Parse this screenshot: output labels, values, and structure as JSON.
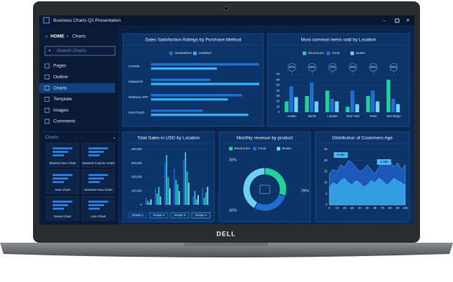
{
  "window": {
    "title": "Business Charts Q1 Presentation"
  },
  "breadcrumb": {
    "home": "HOME",
    "current": "Charts"
  },
  "search": {
    "placeholder": "Search Charts"
  },
  "sidebar": {
    "items": [
      "Pages",
      "Outline",
      "Charts",
      "Template",
      "Images",
      "Comments"
    ],
    "active": 2,
    "section": "Charts",
    "thumbnails": [
      "Stacked Bar Chart",
      "Stacked Column Chart",
      "Area Chart",
      "Stacked Area Chart",
      "Donut Chart",
      "Line Chart"
    ]
  },
  "brand": "DELL",
  "chart_data": [
    {
      "type": "bar",
      "horizontal": true,
      "title": "Sales Satisfaction Ratings by Purchase Method",
      "categories": [
        "STORE",
        "WEBSITE",
        "MOBILE APP",
        "UNTITLED"
      ],
      "series": [
        {
          "name": "Dissatisfied",
          "color": "#1f6fd1",
          "values": [
            100,
            55,
            84,
            48
          ]
        },
        {
          "name": "Satisfied",
          "color": "#2fb0ee",
          "values": [
            61,
            100,
            71,
            90
          ]
        }
      ]
    },
    {
      "type": "bar",
      "title": "Most common items sold by Location",
      "categories": [
        "Austin",
        "Berlin",
        "London",
        "New York",
        "Paris",
        "San Diego"
      ],
      "series": [
        {
          "name": "Electronics",
          "color": "#1fd39a",
          "values": [
            20,
            30,
            40,
            10,
            30,
            60
          ]
        },
        {
          "name": "Food",
          "color": "#1f6fd1",
          "values": [
            48,
            55,
            25,
            40,
            40,
            25
          ]
        },
        {
          "name": "Books",
          "color": "#6fd0f5",
          "values": [
            28,
            20,
            20,
            15,
            20,
            15
          ]
        }
      ],
      "annotations": [
        "40%",
        "50%",
        "70%",
        "40%",
        "60%",
        "60%"
      ],
      "ylim": [
        0,
        70
      ],
      "yticks": [
        0,
        10,
        20,
        30,
        40,
        50,
        60,
        70
      ]
    },
    {
      "type": "bar",
      "title": "Total Sales in USD by Location",
      "categories": [
        null,
        null,
        null,
        null,
        null,
        null,
        null
      ],
      "series": [
        {
          "name": "Scope 1",
          "color": "#1f5fc8",
          "values": [
            50000,
            120000,
            300000,
            260000,
            330000,
            60000,
            120000
          ]
        },
        {
          "name": "Scope 2",
          "color": "#2fb8f0",
          "values": [
            30000,
            80000,
            360000,
            180000,
            380000,
            100000,
            50000
          ]
        },
        {
          "name": "Scope 3",
          "color": "#18c9a0",
          "values": [
            20000,
            130000,
            200000,
            150000,
            240000,
            40000,
            90000
          ]
        },
        {
          "name": "Scope 4",
          "color": "#7fd8f8",
          "values": [
            40000,
            60000,
            120000,
            100000,
            160000,
            70000,
            130000
          ]
        }
      ],
      "ylim": [
        0,
        400000
      ],
      "yticks": [
        0,
        {
          "value": 100000,
          "label": "100,000"
        },
        {
          "value": 200000,
          "label": "200,000"
        },
        {
          "value": 300000,
          "label": "300,000"
        },
        {
          "value": 400000,
          "label": "400,000"
        }
      ]
    },
    {
      "type": "pie",
      "donut": true,
      "title": "Monthly revenue by product",
      "categories": [
        "Electronics",
        "Food",
        "Books"
      ],
      "values": [
        30,
        28,
        42
      ],
      "value_labels": [
        "30%",
        "28%",
        "42%"
      ],
      "colors": [
        "#1fd39a",
        "#1f6fd1",
        "#6fd0f5"
      ]
    },
    {
      "type": "area",
      "title": "Distribution of Customers Age",
      "x": [
        0,
        5,
        10,
        15,
        20,
        25,
        30,
        35,
        40,
        45,
        50,
        55,
        60,
        65,
        70,
        75,
        80,
        85,
        90,
        95,
        100
      ],
      "series": [
        {
          "color": "#1f5fc8",
          "values": [
            14,
            16,
            15,
            18,
            17,
            20,
            19,
            17,
            15,
            16,
            18,
            16,
            14,
            17,
            19,
            18,
            20,
            17,
            19,
            16,
            18
          ]
        },
        {
          "color": "#35a8e6",
          "values": [
            8,
            10,
            9,
            11,
            12,
            10,
            9,
            11,
            10,
            8,
            9,
            11,
            10,
            12,
            11,
            9,
            10,
            12,
            11,
            10,
            9
          ]
        }
      ],
      "annotations": [
        "6.45k",
        "4.36k"
      ],
      "xlim": [
        0,
        100
      ],
      "xticks": [
        0,
        10,
        20,
        30,
        40,
        50,
        60,
        70,
        80,
        90,
        100
      ],
      "ylim": [
        0,
        25
      ],
      "yticks": [
        0,
        5,
        10,
        15,
        20,
        25
      ]
    }
  ]
}
